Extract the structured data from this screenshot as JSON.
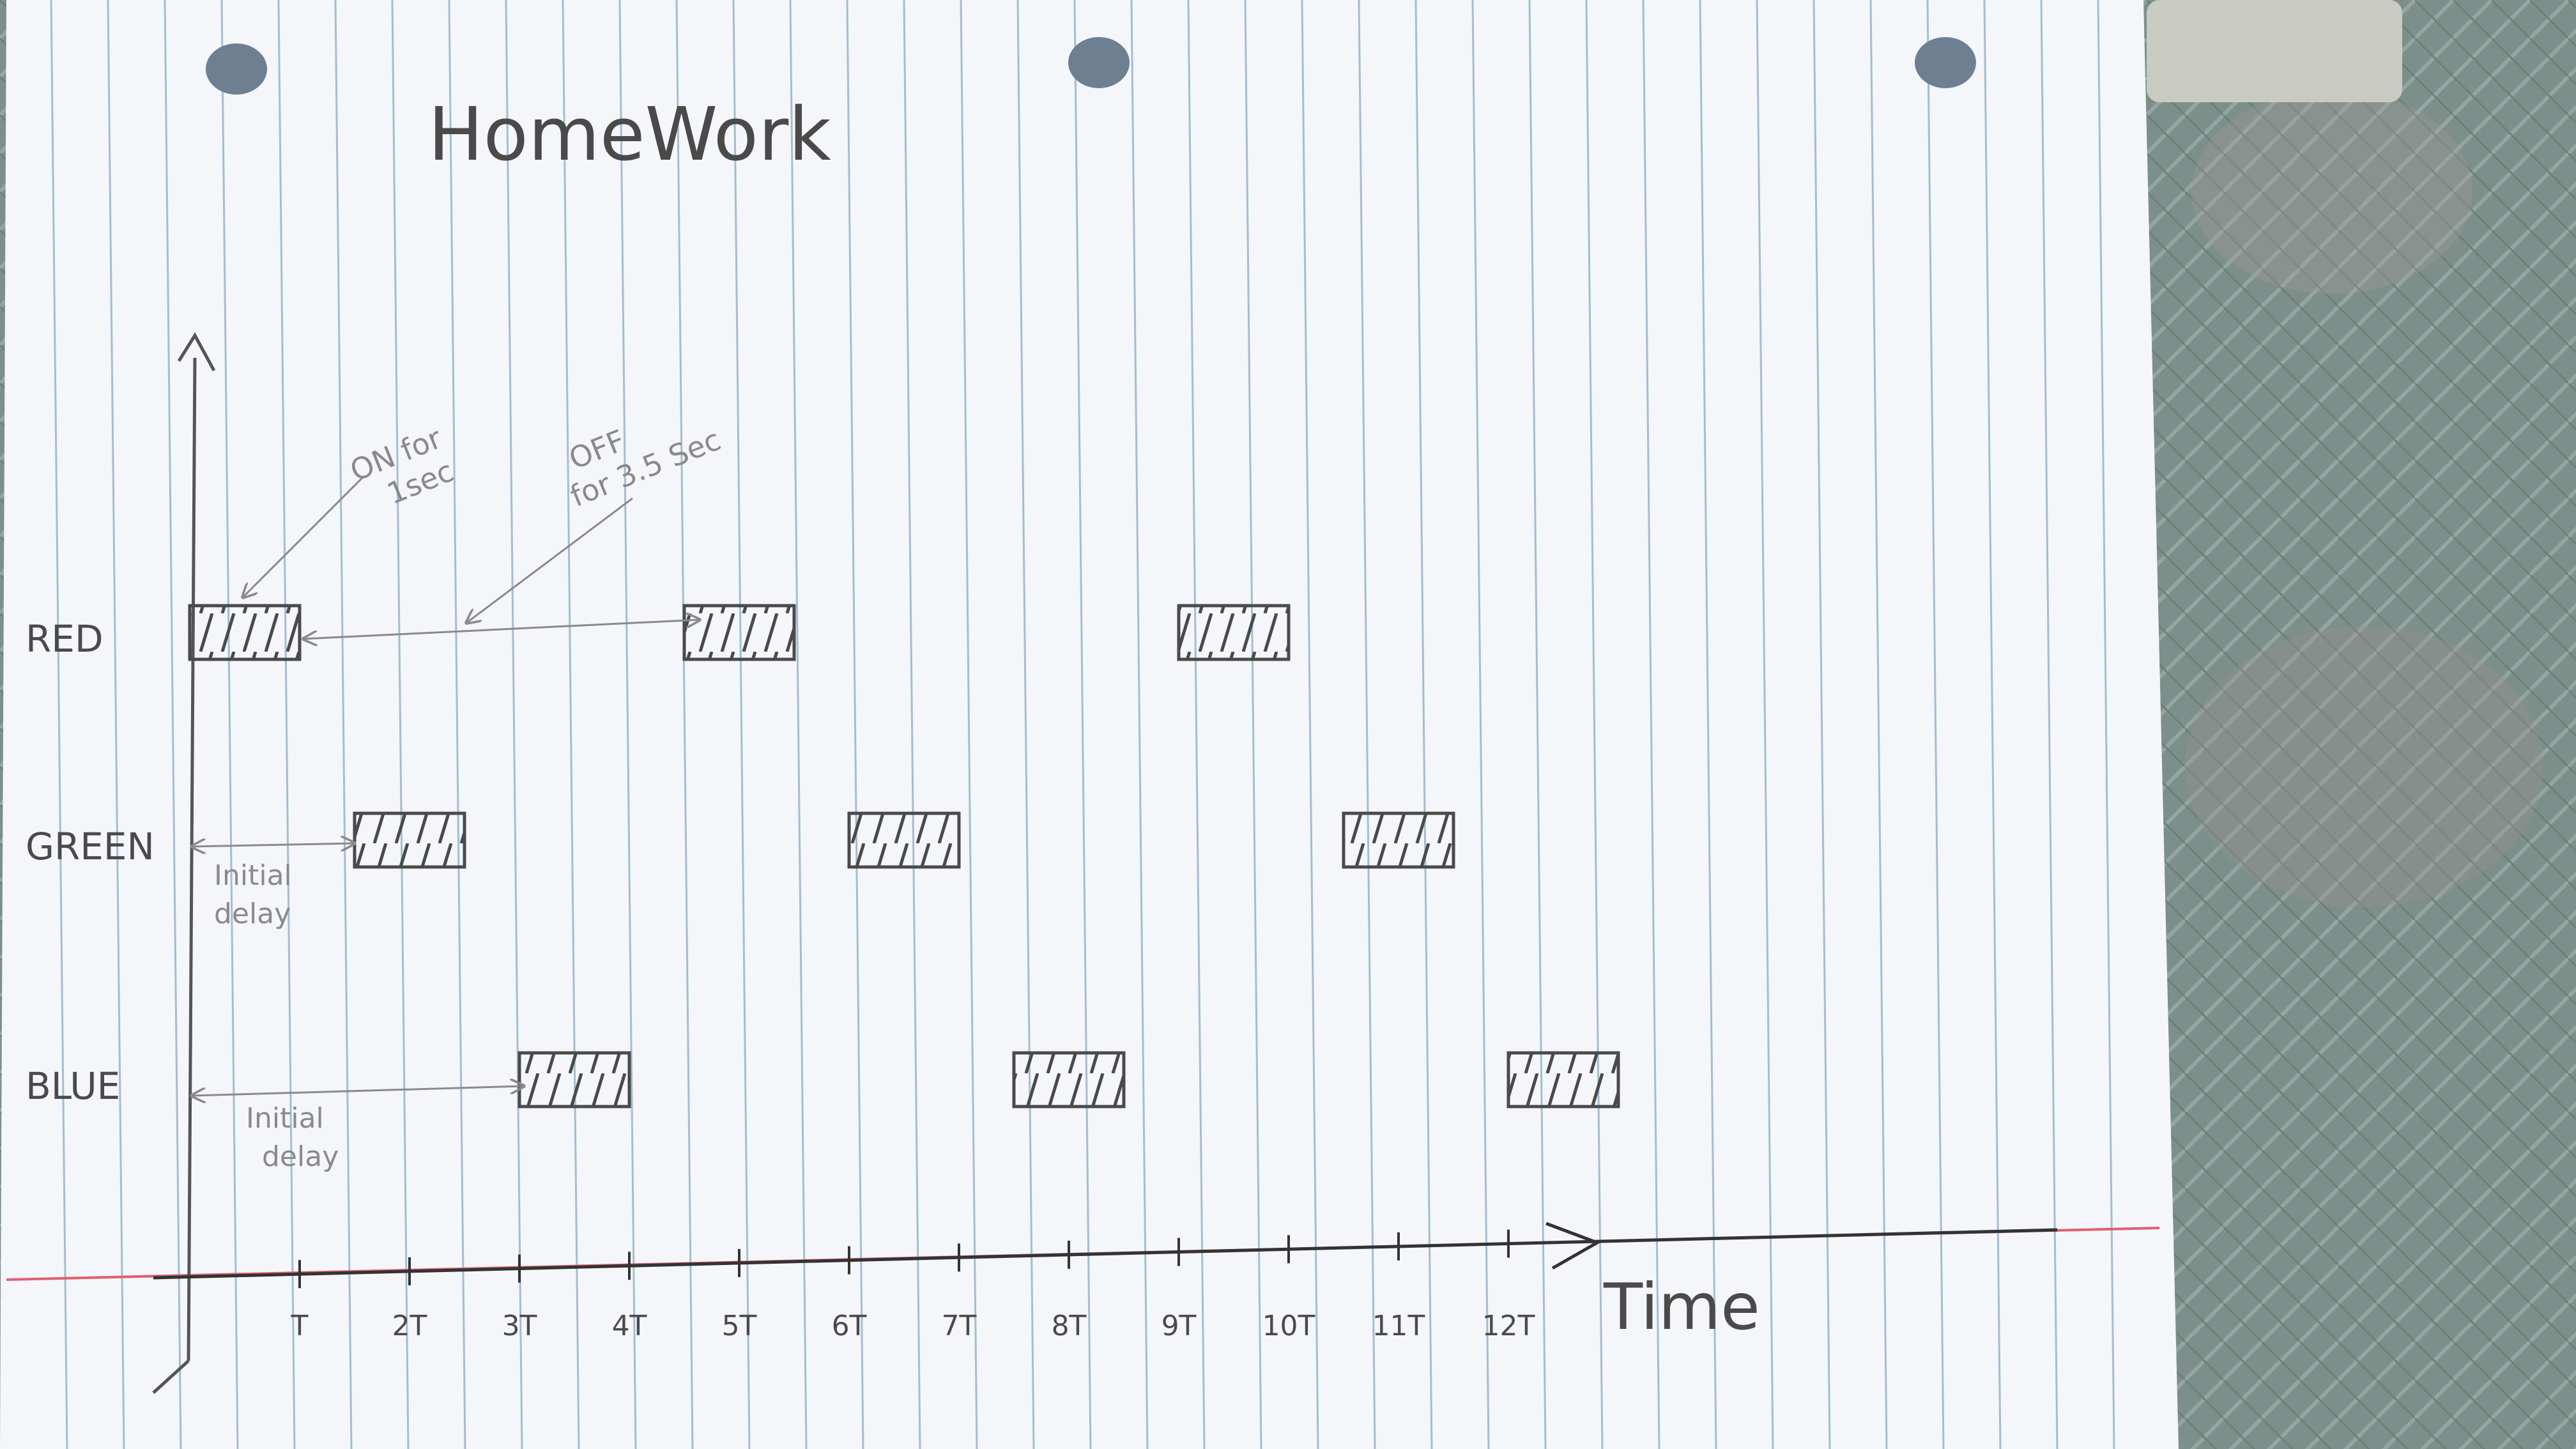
{
  "title": "HomeWork",
  "colors": {
    "paper": "#f4f6fa",
    "rule_line": "#8fb3c9",
    "margin_line": "#e06070",
    "ink": "#4a4a4a",
    "pencil": "#8a8a8a",
    "background_fabric": "#7d8f8a"
  },
  "rows": [
    {
      "label": "RED",
      "pulses": [
        [
          0,
          1
        ],
        [
          4.5,
          5.5
        ],
        [
          9,
          10
        ]
      ]
    },
    {
      "label": "GREEN",
      "pulses": [
        [
          1.5,
          2.5
        ],
        [
          6,
          7
        ],
        [
          10.5,
          11.5
        ]
      ]
    },
    {
      "label": "BLUE",
      "pulses": [
        [
          3,
          4
        ],
        [
          7.5,
          8.5
        ],
        [
          12,
          13
        ]
      ]
    }
  ],
  "ticks": [
    "T",
    "2T",
    "3T",
    "4T",
    "5T",
    "6T",
    "7T",
    "8T",
    "9T",
    "10T",
    "11T",
    "12T"
  ],
  "axis_label": "Time",
  "annotations": {
    "on": [
      "ON for",
      "1sec"
    ],
    "off": [
      "OFF",
      "for 3.5 Sec"
    ],
    "green_delay": [
      "Initial",
      "delay"
    ],
    "blue_delay": [
      "Initial",
      "delay"
    ]
  }
}
